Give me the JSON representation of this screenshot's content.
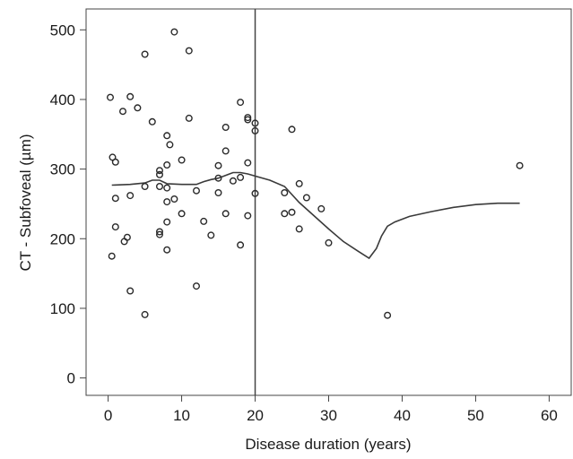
{
  "chart_data": {
    "type": "scatter",
    "title": "",
    "xlabel": "Disease duration (years)",
    "ylabel": "CT - Subfoveal (µm)",
    "xlim": [
      -3,
      63
    ],
    "ylim": [
      -25,
      530
    ],
    "xticks": [
      0,
      10,
      20,
      30,
      40,
      50,
      60
    ],
    "yticks": [
      0,
      100,
      200,
      300,
      400,
      500
    ],
    "grid": false,
    "legend": "none",
    "reference_line": {
      "orientation": "vertical",
      "x": 20
    },
    "colors": {
      "points": "#2a2a2a",
      "fit": "#3a3a3a",
      "axes": "#444444",
      "text": "#1a1a1a"
    },
    "series": [
      {
        "type": "scatter",
        "marker": "open-circle",
        "points": [
          [
            0.3,
            403
          ],
          [
            0.5,
            175
          ],
          [
            0.6,
            317
          ],
          [
            1.0,
            310
          ],
          [
            1.0,
            258
          ],
          [
            1.0,
            217
          ],
          [
            2.0,
            383
          ],
          [
            2.2,
            196
          ],
          [
            2.6,
            202
          ],
          [
            3.0,
            404
          ],
          [
            3.0,
            262
          ],
          [
            3.0,
            125
          ],
          [
            4.0,
            388
          ],
          [
            5.0,
            465
          ],
          [
            5.0,
            275
          ],
          [
            5.0,
            91
          ],
          [
            6.0,
            368
          ],
          [
            7.0,
            298
          ],
          [
            7.0,
            292
          ],
          [
            7.0,
            275
          ],
          [
            7.0,
            210
          ],
          [
            7.0,
            206
          ],
          [
            8.0,
            348
          ],
          [
            8.0,
            306
          ],
          [
            8.0,
            273
          ],
          [
            8.0,
            253
          ],
          [
            8.0,
            224
          ],
          [
            8.0,
            184
          ],
          [
            8.4,
            335
          ],
          [
            9.0,
            497
          ],
          [
            9.0,
            257
          ],
          [
            10.0,
            313
          ],
          [
            10.0,
            236
          ],
          [
            11.0,
            470
          ],
          [
            11.0,
            373
          ],
          [
            12.0,
            269
          ],
          [
            12.0,
            132
          ],
          [
            13.0,
            225
          ],
          [
            14.0,
            205
          ],
          [
            15.0,
            305
          ],
          [
            15.0,
            287
          ],
          [
            15.0,
            266
          ],
          [
            16.0,
            360
          ],
          [
            16.0,
            326
          ],
          [
            16.0,
            236
          ],
          [
            17.0,
            283
          ],
          [
            18.0,
            396
          ],
          [
            18.0,
            288
          ],
          [
            18.0,
            191
          ],
          [
            19.0,
            374
          ],
          [
            19.0,
            371
          ],
          [
            19.0,
            309
          ],
          [
            19.0,
            233
          ],
          [
            20.0,
            366
          ],
          [
            20.0,
            355
          ],
          [
            20.0,
            265
          ],
          [
            24.0,
            266
          ],
          [
            24.0,
            236
          ],
          [
            25.0,
            357
          ],
          [
            25.0,
            238
          ],
          [
            26.0,
            279
          ],
          [
            26.0,
            214
          ],
          [
            27.0,
            259
          ],
          [
            29.0,
            243
          ],
          [
            30.0,
            194
          ],
          [
            38.0,
            90
          ],
          [
            56.0,
            305
          ]
        ]
      },
      {
        "type": "line",
        "style": "fit",
        "points": [
          [
            0.5,
            277
          ],
          [
            3,
            278
          ],
          [
            5,
            280
          ],
          [
            6,
            284
          ],
          [
            7,
            284
          ],
          [
            8,
            279
          ],
          [
            10,
            278
          ],
          [
            12,
            278
          ],
          [
            13,
            282
          ],
          [
            14,
            285
          ],
          [
            15,
            287
          ],
          [
            16,
            291
          ],
          [
            17,
            295
          ],
          [
            18,
            295
          ],
          [
            19,
            293
          ],
          [
            20,
            290
          ],
          [
            22,
            284
          ],
          [
            24,
            275
          ],
          [
            26,
            252
          ],
          [
            28,
            233
          ],
          [
            30,
            214
          ],
          [
            32,
            196
          ],
          [
            34,
            182
          ],
          [
            35.5,
            172
          ],
          [
            36.5,
            186
          ],
          [
            37.2,
            204
          ],
          [
            38,
            218
          ],
          [
            39,
            224
          ],
          [
            41,
            232
          ],
          [
            44,
            239
          ],
          [
            47,
            245
          ],
          [
            50,
            249
          ],
          [
            53,
            251
          ],
          [
            56,
            251
          ]
        ]
      }
    ]
  }
}
